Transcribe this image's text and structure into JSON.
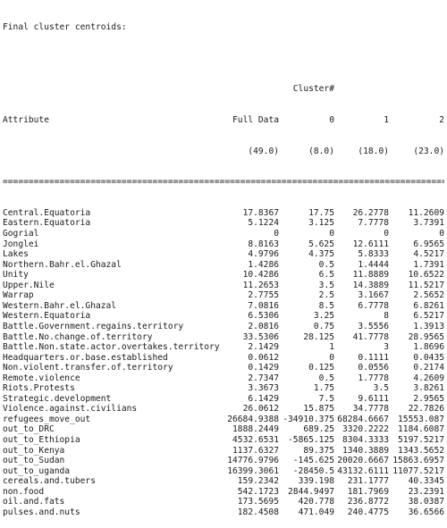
{
  "title": "Final cluster centroids:",
  "header": {
    "cluster_label": "Cluster#",
    "attribute": "Attribute",
    "full_data": "Full Data",
    "c0": "0",
    "c1": "1",
    "c2": "2",
    "full_count": "(49.0)",
    "c0_count": "(8.0)",
    "c1_count": "(18.0)",
    "c2_count": "(23.0)"
  },
  "separator": "=======================================================================================",
  "rows": [
    {
      "name": "Central.Equatoria",
      "full": "17.8367",
      "c0": "17.75",
      "c1": "26.2778",
      "c2": "11.2609"
    },
    {
      "name": "Eastern.Equatoria",
      "full": "5.1224",
      "c0": "3.125",
      "c1": "7.7778",
      "c2": "3.7391"
    },
    {
      "name": "Gogrial",
      "full": "0",
      "c0": "0",
      "c1": "0",
      "c2": "0"
    },
    {
      "name": "Jonglei",
      "full": "8.8163",
      "c0": "5.625",
      "c1": "12.6111",
      "c2": "6.9565"
    },
    {
      "name": "Lakes",
      "full": "4.9796",
      "c0": "4.375",
      "c1": "5.8333",
      "c2": "4.5217"
    },
    {
      "name": "Northern.Bahr.el.Ghazal",
      "full": "1.4286",
      "c0": "0.5",
      "c1": "1.4444",
      "c2": "1.7391"
    },
    {
      "name": "Unity",
      "full": "10.4286",
      "c0": "6.5",
      "c1": "11.8889",
      "c2": "10.6522"
    },
    {
      "name": "Upper.Nile",
      "full": "11.2653",
      "c0": "3.5",
      "c1": "14.3889",
      "c2": "11.5217"
    },
    {
      "name": "Warrap",
      "full": "2.7755",
      "c0": "2.5",
      "c1": "3.1667",
      "c2": "2.5652"
    },
    {
      "name": "Western.Bahr.el.Ghazal",
      "full": "7.0816",
      "c0": "8.5",
      "c1": "6.7778",
      "c2": "6.8261"
    },
    {
      "name": "Western.Equatoria",
      "full": "6.5306",
      "c0": "3.25",
      "c1": "8",
      "c2": "6.5217"
    },
    {
      "name": "Battle.Government.regains.territory",
      "full": "2.0816",
      "c0": "0.75",
      "c1": "3.5556",
      "c2": "1.3913"
    },
    {
      "name": "Battle.No.change.of.territory",
      "full": "33.5306",
      "c0": "28.125",
      "c1": "41.7778",
      "c2": "28.9565"
    },
    {
      "name": "Battle.Non.state.actor.overtakes.territory",
      "full": "2.1429",
      "c0": "1",
      "c1": "3",
      "c2": "1.8696"
    },
    {
      "name": "Headquarters.or.base.established",
      "full": "0.0612",
      "c0": "0",
      "c1": "0.1111",
      "c2": "0.0435"
    },
    {
      "name": "Non.violent.transfer.of.territory",
      "full": "0.1429",
      "c0": "0.125",
      "c1": "0.0556",
      "c2": "0.2174"
    },
    {
      "name": "Remote.violence",
      "full": "2.7347",
      "c0": "0.5",
      "c1": "1.7778",
      "c2": "4.2609"
    },
    {
      "name": "Riots.Protests",
      "full": "3.3673",
      "c0": "1.75",
      "c1": "3.5",
      "c2": "3.8261"
    },
    {
      "name": "Strategic.development",
      "full": "6.1429",
      "c0": "7.5",
      "c1": "9.6111",
      "c2": "2.9565"
    },
    {
      "name": "Violence.against.civilians",
      "full": "26.0612",
      "c0": "15.875",
      "c1": "34.7778",
      "c2": "22.7826"
    },
    {
      "name": "refugees_move_out",
      "full": "26684.9388",
      "c0": "-34910.375",
      "c1": "68284.6667",
      "c2": "15553.087"
    },
    {
      "name": "out_to_DRC",
      "full": "1888.2449",
      "c0": "689.25",
      "c1": "3320.2222",
      "c2": "1184.6087"
    },
    {
      "name": "out_to_Ethiopia",
      "full": "4532.6531",
      "c0": "-5865.125",
      "c1": "8304.3333",
      "c2": "5197.5217"
    },
    {
      "name": "out_to_Kenya",
      "full": "1137.6327",
      "c0": "89.375",
      "c1": "1340.3889",
      "c2": "1343.5652"
    },
    {
      "name": "out_to_Sudan",
      "full": "14776.9796",
      "c0": "-145.625",
      "c1": "20020.6667",
      "c2": "15863.6957"
    },
    {
      "name": "out_to_uganda",
      "full": "16399.3061",
      "c0": "-28450.5",
      "c1": "43132.6111",
      "c2": "11077.5217"
    },
    {
      "name": "cereals.and.tubers",
      "full": "159.2342",
      "c0": "339.198",
      "c1": "231.1777",
      "c2": "40.3345"
    },
    {
      "name": "non.food",
      "full": "542.1723",
      "c0": "2844.9497",
      "c1": "181.7969",
      "c2": "23.2391"
    },
    {
      "name": "oil.and.fats",
      "full": "173.5695",
      "c0": "420.778",
      "c1": "236.8772",
      "c2": "38.0387"
    },
    {
      "name": "pulses.and.nuts",
      "full": "182.4508",
      "c0": "471.049",
      "c1": "240.4775",
      "c2": "36.6566"
    }
  ]
}
